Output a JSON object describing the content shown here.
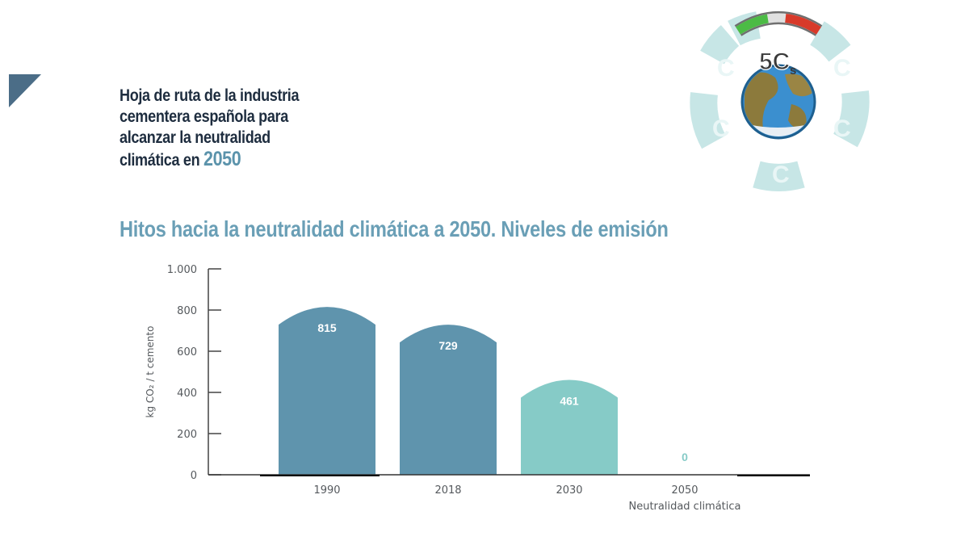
{
  "document": {
    "title_part1": "Hoja de ruta de la industria cementera española para alcanzar la neutralidad climática en ",
    "title_year": "2050"
  },
  "logo": {
    "text": "5C",
    "subscript": "s",
    "icon": "globe-gauge-logo-icon"
  },
  "chart_data": {
    "type": "bar",
    "title": "Hitos hacia la neutralidad climática a 2050. Niveles de emisión",
    "ylabel": "kg CO₂ / t cemento",
    "ylim": [
      0,
      1000
    ],
    "yticks": [
      0,
      200,
      400,
      600,
      800,
      1000
    ],
    "ytick_labels": [
      "0",
      "200",
      "400",
      "600",
      "800",
      "1.000"
    ],
    "categories": [
      "1990",
      "2018",
      "2030",
      "2050"
    ],
    "category_sublabels": [
      "",
      "",
      "",
      "Neutralidad climática"
    ],
    "values": [
      815,
      729,
      461,
      0
    ],
    "value_labels": [
      "815",
      "729",
      "461",
      "0"
    ],
    "colors": [
      "#5f94ad",
      "#5f94ad",
      "#86cbc7",
      "#86cbc7"
    ],
    "grid": false,
    "legend": "none"
  }
}
